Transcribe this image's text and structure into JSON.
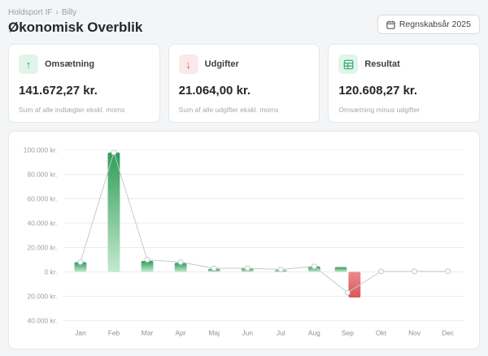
{
  "breadcrumb": {
    "items": [
      "Holdsport IF",
      "Billy"
    ],
    "separator": "›"
  },
  "page": {
    "title": "Økonomisk Overblik"
  },
  "toolbar": {
    "year_button": "Regnskabsår 2025"
  },
  "cards": [
    {
      "label": "Omsætning",
      "value": "141.672,27 kr.",
      "subtitle": "Sum af alle indtægter ekskl. moms",
      "icon": "arrow-up-icon",
      "accent": "#2eaa6b"
    },
    {
      "label": "Udgifter",
      "value": "21.064,00 kr.",
      "subtitle": "Sum af alle udgifter ekskl. moms",
      "icon": "arrow-down-icon",
      "accent": "#dd5a5e"
    },
    {
      "label": "Resultat",
      "value": "120.608,27 kr.",
      "subtitle": "Omsætning minus udgifter",
      "icon": "spreadsheet-icon",
      "accent": "#2eaa6b"
    }
  ],
  "chart_data": {
    "type": "bar",
    "categories": [
      "Jan",
      "Feb",
      "Mar",
      "Apr",
      "Maj",
      "Jun",
      "Jul",
      "Aug",
      "Sep",
      "Okt",
      "Nov",
      "Dec"
    ],
    "series": [
      {
        "name": "Omsætning",
        "type": "bar",
        "color_top": "#2f9e58",
        "color_bottom": "#c4e9cf",
        "values": [
          8000,
          98000,
          9000,
          7500,
          2500,
          3000,
          1500,
          4500,
          4000,
          0,
          0,
          0
        ]
      },
      {
        "name": "Udgifter",
        "type": "bar",
        "color_top": "#ec8a8c",
        "color_bottom": "#d9575b",
        "values": [
          0,
          0,
          0,
          0,
          0,
          0,
          0,
          0,
          -21000,
          0,
          0,
          0
        ]
      },
      {
        "name": "Resultat",
        "type": "line",
        "color": "#c5c9cd",
        "values": [
          8000,
          98000,
          10000,
          8000,
          3000,
          3000,
          2000,
          4500,
          -17000,
          500,
          500,
          500
        ]
      }
    ],
    "ylim": [
      -40000,
      100000
    ],
    "ytick_step": 20000,
    "ytick_labels": [
      "100.000 kr.",
      "80.000 kr.",
      "60.000 kr.",
      "40.000 kr.",
      "20.000 kr.",
      "0 kr.",
      "20.000 kr.",
      "40.000 kr."
    ],
    "grid": true,
    "legend": "none"
  }
}
